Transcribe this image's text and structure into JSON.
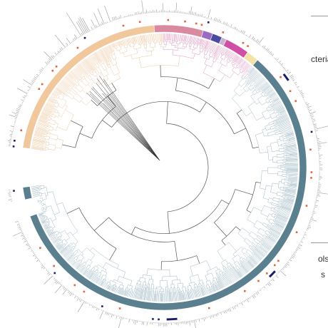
{
  "legend": {
    "items": [
      {
        "text": "cteria"
      },
      {
        "text": "ols"
      },
      {
        "text": "s"
      }
    ]
  },
  "clades": [
    {
      "name": "",
      "color": "#f0c89c",
      "start_deg": -82,
      "end_deg": -4
    },
    {
      "name": "",
      "color": "#d98aa0",
      "start_deg": -4,
      "end_deg": 16
    },
    {
      "name": "",
      "color": "#9a6ac4",
      "start_deg": 16,
      "end_deg": 20
    },
    {
      "name": "",
      "color": "#4a4aa0",
      "start_deg": 20,
      "end_deg": 24
    },
    {
      "name": "",
      "color": "#c9b2cf",
      "start_deg": 24,
      "end_deg": 26
    },
    {
      "name": "",
      "color": "#d04ea6",
      "start_deg": 26,
      "end_deg": 36
    },
    {
      "name": "",
      "color": "#f5e2a8",
      "start_deg": 36,
      "end_deg": 41
    },
    {
      "name": "",
      "color": "#5a7f8f",
      "start_deg": 41,
      "end_deg": 250
    },
    {
      "name": "",
      "color": "#5a7f8f",
      "start_deg": 257,
      "end_deg": 262
    }
  ],
  "colors": {
    "outer_ring": "#5a7f8f",
    "leaf_branch_blue": "#9fb8c4",
    "leaf_branch_orange": "#ecc7a0",
    "leaf_branch_pink": "#dc96bf",
    "internal_branch": "#555555",
    "histogram": "#9a9a9a",
    "marker_orange": "#e0663a",
    "marker_navy": "#1a1a6e"
  }
}
